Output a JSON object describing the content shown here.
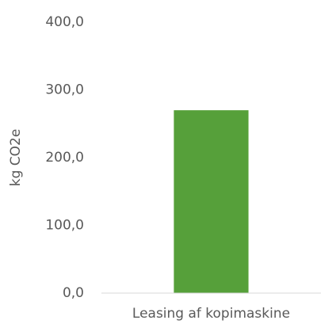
{
  "chart_data": {
    "type": "bar",
    "ylabel": "kg CO2e",
    "categories": [
      "Leasing af kopimaskine"
    ],
    "values": [
      270
    ],
    "color": "#56a03a",
    "ylim": [
      0,
      400
    ],
    "yticks": [
      {
        "value": 0,
        "label": "0,0"
      },
      {
        "value": 100,
        "label": "100,0"
      },
      {
        "value": 200,
        "label": "200,0"
      },
      {
        "value": 300,
        "label": "300,0"
      },
      {
        "value": 400,
        "label": "400,0"
      }
    ],
    "grid": false
  }
}
